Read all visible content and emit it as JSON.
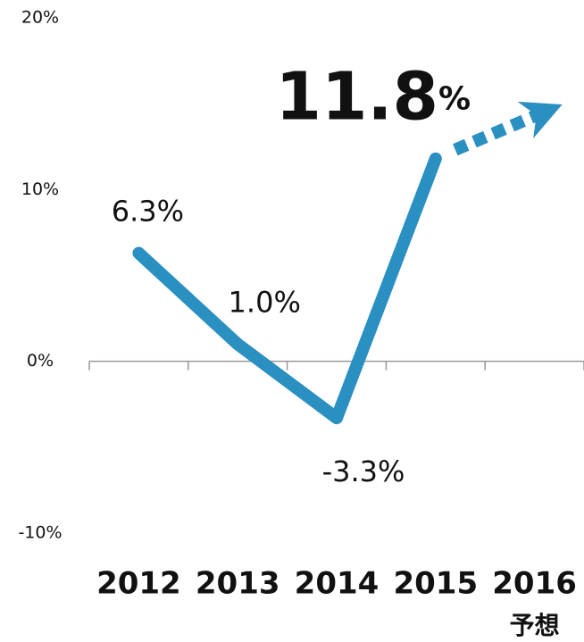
{
  "chart_data": {
    "type": "line",
    "categories": [
      "2012",
      "2013",
      "2014",
      "2015",
      "2016"
    ],
    "forecast_label": "予想",
    "series": [
      {
        "color": "#2a8fc1",
        "values": [
          6.3,
          1.0,
          -3.3,
          11.8,
          null
        ],
        "value_labels": [
          "6.3%",
          "1.0%",
          "-3.3%",
          "11.8%",
          null
        ]
      }
    ],
    "ylim": [
      -10,
      20
    ],
    "yticks": [
      {
        "value": -10,
        "label": "-10%"
      },
      {
        "value": 0,
        "label": "0%"
      },
      {
        "value": 10,
        "label": "10%"
      },
      {
        "value": 20,
        "label": "20%"
      }
    ],
    "grid": false
  }
}
